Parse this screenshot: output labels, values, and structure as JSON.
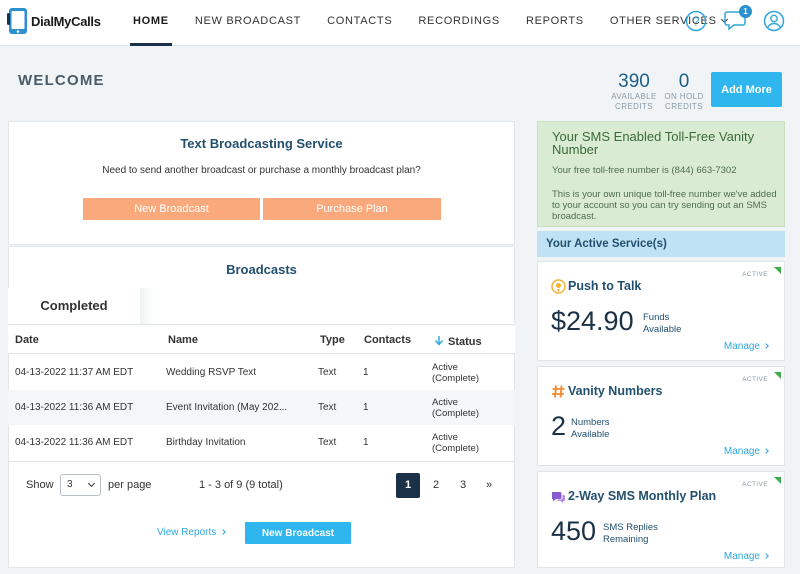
{
  "header": {
    "logo_text": "DialMyCalls",
    "nav": [
      {
        "label": "HOME"
      },
      {
        "label": "NEW BROADCAST"
      },
      {
        "label": "CONTACTS"
      },
      {
        "label": "RECORDINGS"
      },
      {
        "label": "REPORTS"
      },
      {
        "label": "OTHER SERVICES"
      }
    ],
    "notification_count": "1"
  },
  "welcome": {
    "title": "WELCOME",
    "available_credits": "390",
    "available_label_1": "AVAILABLE",
    "available_label_2": "CREDITS",
    "on_hold_credits": "0",
    "on_hold_label_1": "ON HOLD",
    "on_hold_label_2": "CREDITS",
    "add_more_label": "Add More"
  },
  "text_service": {
    "title": "Text Broadcasting Service",
    "subtitle": "Need to send another broadcast or purchase a monthly broadcast plan?",
    "new_broadcast_label": "New Broadcast",
    "purchase_plan_label": "Purchase Plan"
  },
  "broadcasts": {
    "title": "Broadcasts",
    "tab_completed": "Completed",
    "columns": {
      "date": "Date",
      "name": "Name",
      "type": "Type",
      "contacts": "Contacts",
      "status": "Status"
    },
    "rows": [
      {
        "date": "04-13-2022 11:37 AM EDT",
        "name": "Wedding RSVP Text",
        "type": "Text",
        "contacts": "1",
        "status_1": "Active",
        "status_2": "(Complete)"
      },
      {
        "date": "04-13-2022 11:36 AM EDT",
        "name": "Event Invitation (May 202...",
        "type": "Text",
        "contacts": "1",
        "status_1": "Active",
        "status_2": "(Complete)"
      },
      {
        "date": "04-13-2022 11:36 AM EDT",
        "name": "Birthday Invitation",
        "type": "Text",
        "contacts": "1",
        "status_1": "Active",
        "status_2": "(Complete)"
      }
    ],
    "show_label": "Show",
    "per_page_value": "3",
    "per_page_label": "per page",
    "range_text": "1 - 3 of 9 (9 total)",
    "pages": [
      "1",
      "2",
      "3",
      "»"
    ],
    "view_reports_label": "View Reports",
    "new_broadcast_label": "New Broadcast"
  },
  "vanity": {
    "title": "Your SMS Enabled Toll-Free Vanity Number",
    "line1": "Your free toll-free number is (844) 663-7302",
    "line2": "This is your own unique toll-free number we've added to your account so you can try sending out an SMS broadcast."
  },
  "active_services": {
    "title": "Your Active Service(s)",
    "items": [
      {
        "badge": "ACTIVE",
        "title": "Push to Talk",
        "value": "$24.90",
        "label_1": "Funds",
        "label_2": "Available",
        "manage": "Manage"
      },
      {
        "badge": "ACTIVE",
        "title": "Vanity Numbers",
        "value": "2",
        "label_1": "Numbers",
        "label_2": "Available",
        "manage": "Manage"
      },
      {
        "badge": "ACTIVE",
        "title": "2-Way SMS Monthly Plan",
        "value": "450",
        "label_1": "SMS Replies",
        "label_2": "Remaining",
        "manage": "Manage"
      }
    ]
  },
  "colors": {
    "accent_blue": "#2fb6ef",
    "navy": "#1b3147",
    "orange": "#f9a97c",
    "green_bg": "#d9ecd3",
    "active_green": "#3cae4b"
  }
}
